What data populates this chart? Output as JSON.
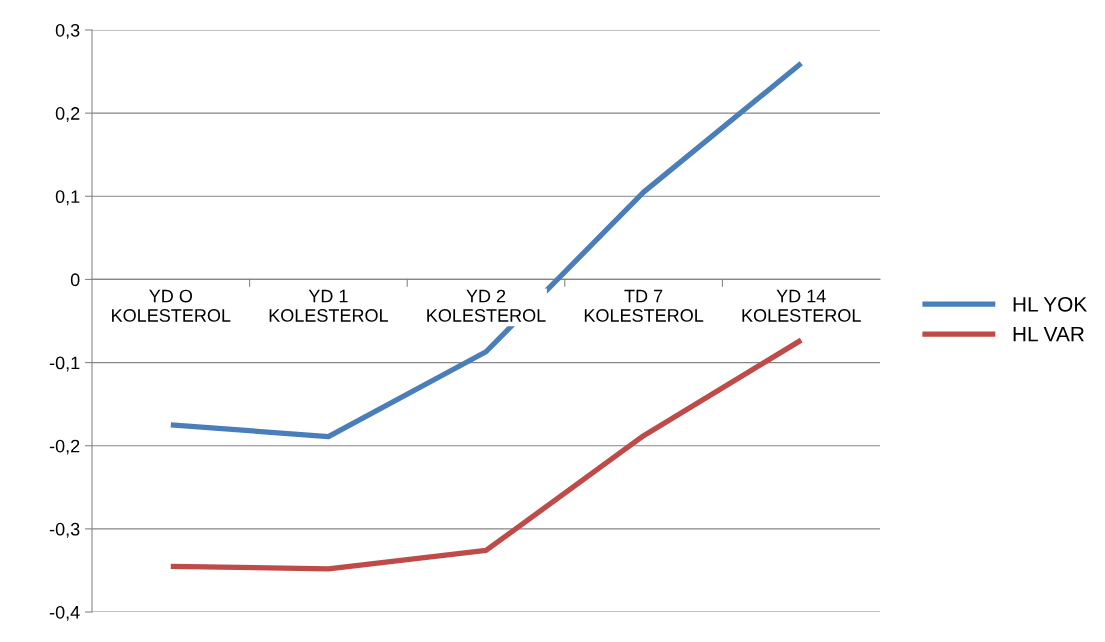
{
  "chart_data": {
    "type": "line",
    "categories": [
      "YD O\nKOLESTEROL",
      "YD 1\nKOLESTEROL",
      "YD 2\nKOLESTEROL",
      "TD 7\nKOLESTEROL",
      "YD 14\nKOLESTEROL"
    ],
    "series": [
      {
        "name": "HL YOK",
        "color": "#4a7ebb",
        "values": [
          -0.175,
          -0.189,
          -0.087,
          0.105,
          0.26
        ]
      },
      {
        "name": "HL VAR",
        "color": "#be4b48",
        "values": [
          -0.345,
          -0.348,
          -0.326,
          -0.188,
          -0.073
        ]
      }
    ],
    "ylim": [
      -0.4,
      0.3
    ],
    "yticks": [
      {
        "value": -0.4,
        "label": "-0,4"
      },
      {
        "value": -0.3,
        "label": "-0,3"
      },
      {
        "value": -0.2,
        "label": "-0,2"
      },
      {
        "value": -0.1,
        "label": "-0,1"
      },
      0,
      {
        "value": 0.1,
        "label": "0,1"
      },
      {
        "value": 0.2,
        "label": "0,2"
      },
      {
        "value": 0.3,
        "label": "0,3"
      }
    ],
    "grid": "y",
    "legend": "right",
    "marker": "none",
    "line_style": "solid"
  }
}
